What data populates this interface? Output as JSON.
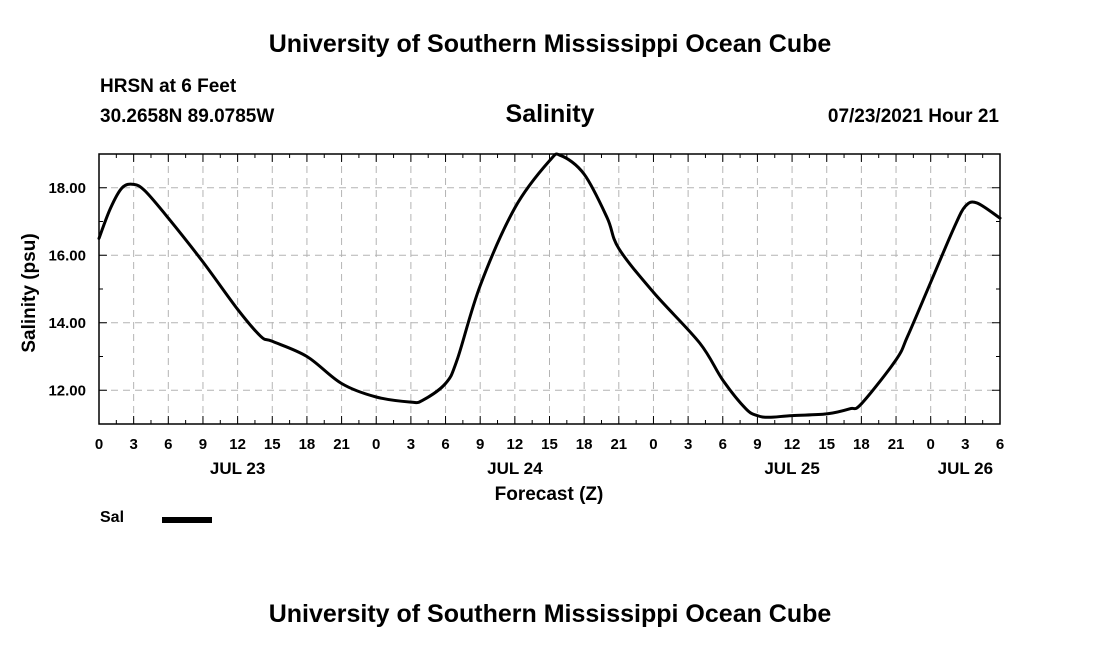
{
  "header": {
    "title": "University of Southern Mississippi Ocean Cube",
    "station": "HRSN at 6 Feet",
    "coordinates": "30.2658N  89.0785W",
    "plot_title": "Salinity",
    "datetime": "07/23/2021 Hour 21"
  },
  "footer": {
    "title": "University of Southern Mississippi Ocean Cube"
  },
  "legend": {
    "label": "Sal",
    "color": "#000000"
  },
  "chart_data": {
    "type": "line",
    "title": "Salinity",
    "xlabel": "Forecast (Z)",
    "ylabel": "Salinity (psu)",
    "xlim": [
      "07/23 00Z",
      "07/26 06Z"
    ],
    "ylim": [
      11.0,
      19.0
    ],
    "y_ticks": [
      "12.00",
      "14.00",
      "16.00",
      "18.00"
    ],
    "x_tick_labels": [
      "0",
      "3",
      "6",
      "9",
      "12",
      "15",
      "18",
      "21",
      "0",
      "3",
      "6",
      "9",
      "12",
      "15",
      "18",
      "21",
      "0",
      "3",
      "6",
      "9",
      "12",
      "15",
      "18",
      "21",
      "0",
      "3",
      "6"
    ],
    "date_labels": [
      {
        "label": "JUL 23",
        "at": "07/23 12Z"
      },
      {
        "label": "JUL 24",
        "at": "07/24 12Z"
      },
      {
        "label": "JUL 25",
        "at": "07/25 12Z"
      },
      {
        "label": "JUL 26",
        "at": "07/26 03Z"
      }
    ],
    "grid": true,
    "legend_position": "bottom-left",
    "series": [
      {
        "name": "Sal",
        "color": "#000000",
        "x": [
          "07/23 00Z",
          "07/23 01Z",
          "07/23 02Z",
          "07/23 03Z",
          "07/23 04Z",
          "07/23 06Z",
          "07/23 09Z",
          "07/23 12Z",
          "07/23 14Z",
          "07/23 15Z",
          "07/23 18Z",
          "07/23 21Z",
          "07/24 00Z",
          "07/24 03Z",
          "07/24 04Z",
          "07/24 06Z",
          "07/24 07Z",
          "07/24 09Z",
          "07/24 12Z",
          "07/24 15Z",
          "07/24 16Z",
          "07/24 18Z",
          "07/24 20Z",
          "07/24 21Z",
          "07/25 00Z",
          "07/25 04Z",
          "07/25 06Z",
          "07/25 08Z",
          "07/25 09Z",
          "07/25 10Z",
          "07/25 12Z",
          "07/25 15Z",
          "07/25 17Z",
          "07/25 18Z",
          "07/25 21Z",
          "07/25 22Z",
          "07/26 00Z",
          "07/26 02Z",
          "07/26 03Z",
          "07/26 04Z",
          "07/26 06Z"
        ],
        "y": [
          16.5,
          17.4,
          18.0,
          18.1,
          17.9,
          17.1,
          15.8,
          14.4,
          13.6,
          13.45,
          13.0,
          12.2,
          11.8,
          11.65,
          11.7,
          12.2,
          12.9,
          15.1,
          17.4,
          18.8,
          18.95,
          18.4,
          17.1,
          16.2,
          14.9,
          13.4,
          12.3,
          11.45,
          11.25,
          11.2,
          11.25,
          11.3,
          11.45,
          11.6,
          12.9,
          13.6,
          15.2,
          16.8,
          17.45,
          17.55,
          17.1
        ]
      }
    ]
  }
}
